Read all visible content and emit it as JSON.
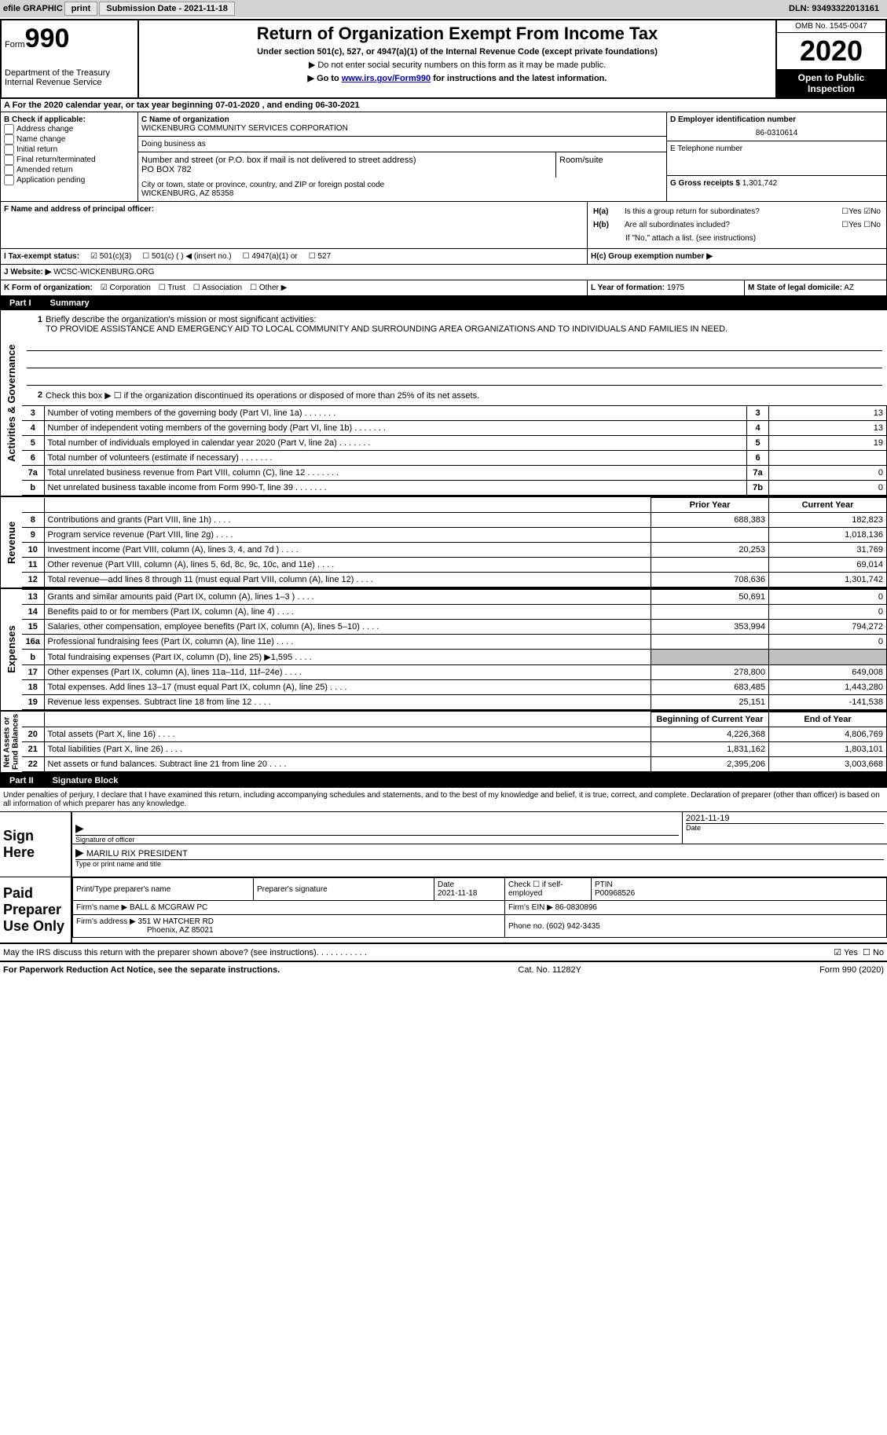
{
  "efile": {
    "label": "efile GRAPHIC",
    "print_btn": "print",
    "submission_label": "Submission Date - 2021-11-18",
    "dln_label": "DLN: 93493322013161"
  },
  "header": {
    "form_word": "Form",
    "form_num": "990",
    "dept": "Department of the Treasury\nInternal Revenue Service",
    "title": "Return of Organization Exempt From Income Tax",
    "sub": "Under section 501(c), 527, or 4947(a)(1) of the Internal Revenue Code (except private foundations)",
    "note1": "▶ Do not enter social security numbers on this form as it may be made public.",
    "note2_pre": "▶ Go to ",
    "note2_link": "www.irs.gov/Form990",
    "note2_post": " for instructions and the latest information.",
    "omb": "OMB No. 1545-0047",
    "year": "2020",
    "inspect": "Open to Public Inspection"
  },
  "row_a": "A For the 2020 calendar year, or tax year beginning 07-01-2020   , and ending 06-30-2021",
  "section_b": {
    "label": "B Check if applicable:",
    "opts": [
      "Address change",
      "Name change",
      "Initial return",
      "Final return/terminated",
      "Amended return",
      "Application pending"
    ]
  },
  "section_c": {
    "name_label": "C Name of organization",
    "name": "WICKENBURG COMMUNITY SERVICES CORPORATION",
    "dba_label": "Doing business as",
    "addr_label": "Number and street (or P.O. box if mail is not delivered to street address)",
    "room_label": "Room/suite",
    "addr": "PO BOX 782",
    "city_label": "City or town, state or province, country, and ZIP or foreign postal code",
    "city": "WICKENBURG, AZ  85358"
  },
  "section_d": {
    "label": "D Employer identification number",
    "ein": "86-0310614",
    "phone_label": "E Telephone number",
    "receipts_label": "G Gross receipts $",
    "receipts": "1,301,742"
  },
  "section_f": {
    "label": "F  Name and address of principal officer:"
  },
  "section_h": {
    "a_label": "H(a)  Is this a group return for subordinates?",
    "b_label": "H(b)  Are all subordinates included?",
    "note": "If \"No,\" attach a list. (see instructions)",
    "c_label": "H(c)  Group exemption number ▶",
    "yes": "Yes",
    "no": "No"
  },
  "section_i": {
    "label": "I   Tax-exempt status:",
    "opts": [
      "501(c)(3)",
      "501(c) (  ) ◀ (insert no.)",
      "4947(a)(1) or",
      "527"
    ]
  },
  "section_j": {
    "label": "J   Website: ▶",
    "value": "WCSC-WICKENBURG.ORG"
  },
  "section_k": {
    "label": "K Form of organization:",
    "opts": [
      "Corporation",
      "Trust",
      "Association",
      "Other ▶"
    ]
  },
  "section_l": {
    "label": "L Year of formation:",
    "value": "1975"
  },
  "section_m": {
    "label": "M State of legal domicile:",
    "value": "AZ"
  },
  "part1": {
    "label": "Part I",
    "title": "Summary"
  },
  "mission": {
    "label": "Briefly describe the organization's mission or most significant activities:",
    "text": "TO PROVIDE ASSISTANCE AND EMERGENCY AID TO LOCAL COMMUNITY AND SURROUNDING AREA ORGANIZATIONS AND TO INDIVIDUALS AND FAMILIES IN NEED.",
    "line2": "Check this box ▶ ☐  if the organization discontinued its operations or disposed of more than 25% of its net assets."
  },
  "side_labels": {
    "gov": "Activities & Governance",
    "rev": "Revenue",
    "exp": "Expenses",
    "net": "Net Assets or Fund Balances"
  },
  "gov_lines": [
    {
      "n": "3",
      "t": "Number of voting members of the governing body (Part VI, line 1a)",
      "b": "3",
      "v": "13"
    },
    {
      "n": "4",
      "t": "Number of independent voting members of the governing body (Part VI, line 1b)",
      "b": "4",
      "v": "13"
    },
    {
      "n": "5",
      "t": "Total number of individuals employed in calendar year 2020 (Part V, line 2a)",
      "b": "5",
      "v": "19"
    },
    {
      "n": "6",
      "t": "Total number of volunteers (estimate if necessary)",
      "b": "6",
      "v": ""
    },
    {
      "n": "7a",
      "t": "Total unrelated business revenue from Part VIII, column (C), line 12",
      "b": "7a",
      "v": "0"
    },
    {
      "n": "  b",
      "t": "Net unrelated business taxable income from Form 990-T, line 39",
      "b": "7b",
      "v": "0"
    }
  ],
  "col_headers": {
    "prior": "Prior Year",
    "current": "Current Year",
    "bcy": "Beginning of Current Year",
    "eoy": "End of Year"
  },
  "rev_lines": [
    {
      "n": "8",
      "t": "Contributions and grants (Part VIII, line 1h)",
      "p": "688,383",
      "c": "182,823"
    },
    {
      "n": "9",
      "t": "Program service revenue (Part VIII, line 2g)",
      "p": "",
      "c": "1,018,136"
    },
    {
      "n": "10",
      "t": "Investment income (Part VIII, column (A), lines 3, 4, and 7d )",
      "p": "20,253",
      "c": "31,769"
    },
    {
      "n": "11",
      "t": "Other revenue (Part VIII, column (A), lines 5, 6d, 8c, 9c, 10c, and 11e)",
      "p": "",
      "c": "69,014"
    },
    {
      "n": "12",
      "t": "Total revenue—add lines 8 through 11 (must equal Part VIII, column (A), line 12)",
      "p": "708,636",
      "c": "1,301,742"
    }
  ],
  "exp_lines": [
    {
      "n": "13",
      "t": "Grants and similar amounts paid (Part IX, column (A), lines 1–3 )",
      "p": "50,691",
      "c": "0"
    },
    {
      "n": "14",
      "t": "Benefits paid to or for members (Part IX, column (A), line 4)",
      "p": "",
      "c": "0"
    },
    {
      "n": "15",
      "t": "Salaries, other compensation, employee benefits (Part IX, column (A), lines 5–10)",
      "p": "353,994",
      "c": "794,272"
    },
    {
      "n": "16a",
      "t": "Professional fundraising fees (Part IX, column (A), line 11e)",
      "p": "",
      "c": "0"
    },
    {
      "n": "b",
      "t": "Total fundraising expenses (Part IX, column (D), line 25) ▶1,595",
      "p": "shade",
      "c": "shade"
    },
    {
      "n": "17",
      "t": "Other expenses (Part IX, column (A), lines 11a–11d, 11f–24e)",
      "p": "278,800",
      "c": "649,008"
    },
    {
      "n": "18",
      "t": "Total expenses. Add lines 13–17 (must equal Part IX, column (A), line 25)",
      "p": "683,485",
      "c": "1,443,280"
    },
    {
      "n": "19",
      "t": "Revenue less expenses. Subtract line 18 from line 12",
      "p": "25,151",
      "c": "-141,538"
    }
  ],
  "net_lines": [
    {
      "n": "20",
      "t": "Total assets (Part X, line 16)",
      "p": "4,226,368",
      "c": "4,806,769"
    },
    {
      "n": "21",
      "t": "Total liabilities (Part X, line 26)",
      "p": "1,831,162",
      "c": "1,803,101"
    },
    {
      "n": "22",
      "t": "Net assets or fund balances. Subtract line 21 from line 20",
      "p": "2,395,206",
      "c": "3,003,668"
    }
  ],
  "part2": {
    "label": "Part II",
    "title": "Signature Block"
  },
  "sig_declare": "Under penalties of perjury, I declare that I have examined this return, including accompanying schedules and statements, and to the best of my knowledge and belief, it is true, correct, and complete. Declaration of preparer (other than officer) is based on all information of which preparer has any knowledge.",
  "sign": {
    "here": "Sign Here",
    "sig_label": "Signature of officer",
    "date": "2021-11-19",
    "date_label": "Date",
    "name": "MARILU RIX PRESIDENT",
    "name_label": "Type or print name and title"
  },
  "preparer": {
    "label": "Paid Preparer Use Only",
    "name_label": "Print/Type preparer's name",
    "sig_label": "Preparer's signature",
    "date_label": "Date",
    "date": "2021-11-18",
    "check_label": "Check ☐ if self-employed",
    "ptin_label": "PTIN",
    "ptin": "P00968526",
    "firm_name_label": "Firm's name   ▶",
    "firm_name": "BALL & MCGRAW PC",
    "firm_ein_label": "Firm's EIN ▶",
    "firm_ein": "86-0830896",
    "firm_addr_label": "Firm's address ▶",
    "firm_addr": "351 W HATCHER RD",
    "firm_city": "Phoenix, AZ  85021",
    "phone_label": "Phone no.",
    "phone": "(602) 942-3435"
  },
  "irs_discuss": "May the IRS discuss this return with the preparer shown above? (see instructions)",
  "footer": {
    "l": "For Paperwork Reduction Act Notice, see the separate instructions.",
    "c": "Cat. No. 11282Y",
    "r": "Form 990 (2020)"
  }
}
